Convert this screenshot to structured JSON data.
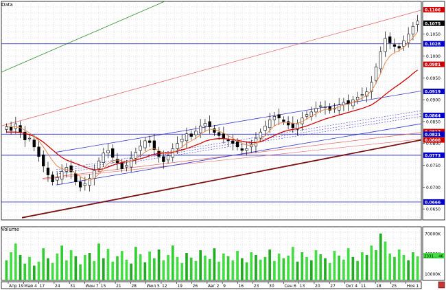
{
  "chart_data": [
    {
      "type": "candlestick",
      "title": "Data",
      "x_tick_labels": [
        "Апр 19",
        "Май 4",
        "17",
        "24",
        "31",
        "Июн 7",
        "15",
        "21",
        "28",
        "Июл 5",
        "12",
        "19",
        "26",
        "Авг 2",
        "9",
        "16",
        "23",
        "30",
        "Сен 6",
        "13",
        "20",
        "27",
        "Окт 4",
        "11",
        "18",
        "25",
        "Ноя 1"
      ],
      "ylim": [
        0.0625,
        0.1125
      ],
      "y_tick_labels": [
        "0.1075",
        "0.1050",
        "0.1000",
        "0.0950",
        "0.0900",
        "0.0850",
        "0.0800",
        "0.0750",
        "0.0700",
        "0.0650"
      ],
      "price_labels": [
        {
          "value": "0.1106",
          "color": "#cc0000"
        },
        {
          "value": "0.1075",
          "color": "#000000"
        },
        {
          "value": "0.1028",
          "color": "#0000cc"
        },
        {
          "value": "0.0981",
          "color": "#cc0000"
        },
        {
          "value": "0.0919",
          "color": "#0000cc"
        },
        {
          "value": "0.0864",
          "color": "#0000cc"
        },
        {
          "value": "0.0827",
          "color": "#cc0000"
        },
        {
          "value": "0.0821",
          "color": "#0000cc"
        },
        {
          "value": "0.0808",
          "color": "#cc0000"
        },
        {
          "value": "0.0773",
          "color": "#0000cc"
        },
        {
          "value": "0.0666",
          "color": "#0000cc"
        }
      ],
      "series": [
        {
          "name": "close",
          "values": [
            0.0838,
            0.083,
            0.0845,
            0.0826,
            0.0808,
            0.0812,
            0.0792,
            0.077,
            0.0748,
            0.0728,
            0.0712,
            0.0722,
            0.0736,
            0.0745,
            0.0735,
            0.0712,
            0.07,
            0.0708,
            0.072,
            0.0738,
            0.076,
            0.0778,
            0.0784,
            0.0768,
            0.0756,
            0.0742,
            0.075,
            0.0766,
            0.078,
            0.0794,
            0.0806,
            0.0802,
            0.0786,
            0.077,
            0.0758,
            0.0772,
            0.0788,
            0.08,
            0.081,
            0.0822,
            0.0816,
            0.0828,
            0.084,
            0.0846,
            0.0838,
            0.0825,
            0.0818,
            0.0812,
            0.0806,
            0.08,
            0.0792,
            0.0784,
            0.0788,
            0.0798,
            0.0812,
            0.0826,
            0.084,
            0.0854,
            0.0862,
            0.0858,
            0.085,
            0.0842,
            0.0836,
            0.0845,
            0.0858,
            0.0866,
            0.0872,
            0.088,
            0.0886,
            0.0884,
            0.0876,
            0.088,
            0.0888,
            0.0894,
            0.089,
            0.09,
            0.0906,
            0.0912,
            0.0918,
            0.094,
            0.0975,
            0.101,
            0.104,
            0.103,
            0.1022,
            0.1018,
            0.1035,
            0.105,
            0.1068,
            0.108
          ]
        },
        {
          "name": "MA fast",
          "values": [
            0.084,
            0.0838,
            0.0838,
            0.0836,
            0.083,
            0.0824,
            0.0816,
            0.0806,
            0.0792,
            0.0776,
            0.076,
            0.0748,
            0.0742,
            0.074,
            0.0738,
            0.0732,
            0.0724,
            0.0718,
            0.0716,
            0.072,
            0.073,
            0.0742,
            0.0754,
            0.076,
            0.0762,
            0.076,
            0.0758,
            0.076,
            0.0764,
            0.0772,
            0.078,
            0.0786,
            0.0788,
            0.0784,
            0.0778,
            0.0776,
            0.0778,
            0.0784,
            0.0792,
            0.08,
            0.0806,
            0.0812,
            0.082,
            0.0828,
            0.0832,
            0.0832,
            0.0828,
            0.0824,
            0.0818,
            0.0812,
            0.0806,
            0.08,
            0.0796,
            0.0796,
            0.08,
            0.0808,
            0.0818,
            0.083,
            0.084,
            0.0846,
            0.0848,
            0.0848,
            0.0846,
            0.0846,
            0.085,
            0.0856,
            0.0862,
            0.0868,
            0.0874,
            0.0878,
            0.0878,
            0.088,
            0.0884,
            0.0888,
            0.089,
            0.0894,
            0.0898,
            0.0904,
            0.091,
            0.092,
            0.0938,
            0.096,
            0.0985,
            0.1,
            0.1008,
            0.1012,
            0.102,
            0.103,
            0.1042,
            0.1055
          ]
        },
        {
          "name": "MA slow",
          "values": [
            0.0826,
            0.0826,
            0.0826,
            0.0825,
            0.0823,
            0.082,
            0.0816,
            0.081,
            0.0803,
            0.0794,
            0.0785,
            0.0776,
            0.0768,
            0.0762,
            0.0758,
            0.0754,
            0.075,
            0.0746,
            0.0742,
            0.074,
            0.074,
            0.0742,
            0.0746,
            0.075,
            0.0754,
            0.0756,
            0.0758,
            0.076,
            0.0762,
            0.0765,
            0.0768,
            0.0772,
            0.0775,
            0.0777,
            0.0778,
            0.0779,
            0.078,
            0.0782,
            0.0785,
            0.0788,
            0.0792,
            0.0796,
            0.08,
            0.0805,
            0.0808,
            0.081,
            0.0811,
            0.0811,
            0.081,
            0.0809,
            0.0807,
            0.0805,
            0.0803,
            0.0802,
            0.0802,
            0.0804,
            0.0808,
            0.0813,
            0.0818,
            0.0823,
            0.0827,
            0.083,
            0.0832,
            0.0834,
            0.0837,
            0.084,
            0.0844,
            0.0848,
            0.0852,
            0.0856,
            0.0859,
            0.0862,
            0.0865,
            0.0868,
            0.0871,
            0.0874,
            0.0877,
            0.088,
            0.0884,
            0.0888,
            0.0895,
            0.0903,
            0.0912,
            0.092,
            0.0928,
            0.0935,
            0.0943,
            0.0951,
            0.096,
            0.0968
          ]
        }
      ]
    },
    {
      "type": "bar",
      "title": "Volume",
      "ylim": [
        0,
        80000000
      ],
      "y_tick_labels": [
        "70000K",
        "40000K",
        "10000K"
      ],
      "last_value_label": "2331... 46",
      "values": [
        30,
        42,
        55,
        38,
        25,
        35,
        22,
        28,
        48,
        33,
        26,
        40,
        52,
        30,
        45,
        36,
        24,
        38,
        41,
        29,
        55,
        33,
        47,
        28,
        36,
        44,
        31,
        25,
        50,
        39,
        27,
        43,
        33,
        46,
        30,
        38,
        52,
        35,
        26,
        41,
        34,
        29,
        45,
        37,
        32,
        48,
        28,
        40,
        36,
        30,
        44,
        33,
        27,
        42,
        38,
        31,
        35,
        46,
        29,
        40,
        33,
        37,
        50,
        28,
        42,
        35,
        30,
        45,
        39,
        33,
        26,
        44,
        37,
        31,
        48,
        35,
        29,
        42,
        38,
        52,
        45,
        70,
        58,
        40,
        35,
        46,
        38,
        30,
        42,
        36
      ]
    }
  ]
}
